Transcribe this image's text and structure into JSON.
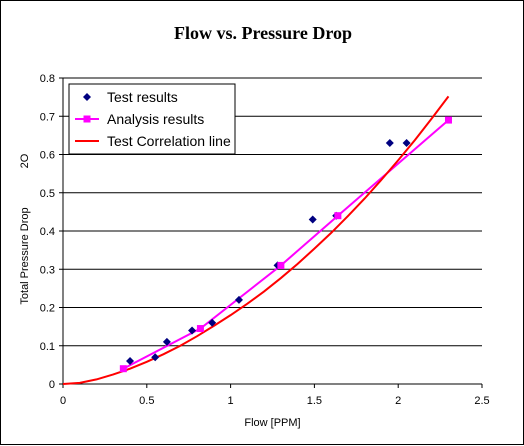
{
  "chart_data": {
    "type": "scatter",
    "title": "Flow vs. Pressure Drop",
    "xlabel": "Flow [PPM]",
    "ylabel": "Total Pressure Drop",
    "ylabel_fragment": "2O",
    "xlim": [
      0,
      2.5
    ],
    "ylim": [
      0,
      0.8
    ],
    "x_ticks": [
      "0",
      "0.5",
      "1",
      "1.5",
      "2",
      "2.5"
    ],
    "y_ticks": [
      "0",
      "0.1",
      "0.2",
      "0.3",
      "0.4",
      "0.5",
      "0.6",
      "0.7",
      "0.8"
    ],
    "grid": "horizontal",
    "legend_placement": "top-left",
    "series": [
      {
        "name": "Test results",
        "kind": "markers",
        "marker": "diamond",
        "color": "#000080",
        "x": [
          0.4,
          0.55,
          0.62,
          0.77,
          0.89,
          1.05,
          1.28,
          1.49,
          1.63,
          1.95,
          2.05
        ],
        "y": [
          0.06,
          0.07,
          0.11,
          0.14,
          0.16,
          0.22,
          0.31,
          0.43,
          0.44,
          0.63,
          0.63
        ]
      },
      {
        "name": "Analysis results",
        "kind": "line-markers",
        "marker": "square",
        "color": "#ff00ff",
        "x": [
          0.36,
          0.82,
          1.3,
          1.64,
          2.3
        ],
        "y": [
          0.04,
          0.145,
          0.31,
          0.44,
          0.69
        ]
      },
      {
        "name": "Test Correlation line",
        "kind": "line",
        "color": "#ff0000",
        "x": [
          0,
          0.1,
          0.2,
          0.3,
          0.4,
          0.5,
          0.6,
          0.7,
          0.8,
          0.9,
          1.0,
          1.1,
          1.2,
          1.3,
          1.4,
          1.5,
          1.6,
          1.7,
          1.8,
          1.9,
          2.0,
          2.1,
          2.2,
          2.3
        ],
        "y": [
          0.0,
          0.003,
          0.012,
          0.025,
          0.04,
          0.058,
          0.078,
          0.1,
          0.125,
          0.152,
          0.18,
          0.21,
          0.242,
          0.277,
          0.314,
          0.354,
          0.395,
          0.439,
          0.485,
          0.534,
          0.585,
          0.638,
          0.694,
          0.752
        ]
      }
    ]
  }
}
